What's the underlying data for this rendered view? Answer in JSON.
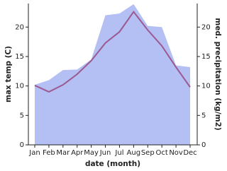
{
  "chart_data": {
    "type": "line",
    "xlabel": "date (month)",
    "ylabel": "max temp (C)",
    "y2label": "med. precipitation (kg/m2)",
    "categories": [
      "Jan",
      "Feb",
      "Mar",
      "Apr",
      "May",
      "Jun",
      "Jul",
      "Aug",
      "Sep",
      "Oct",
      "Nov",
      "Dec"
    ],
    "series": [
      {
        "name": "med. precipitation",
        "type": "area",
        "axis": "y2",
        "color": "#b4bff4",
        "values": [
          10.2,
          11,
          12.7,
          12.8,
          14.5,
          22,
          22.3,
          23.9,
          20.2,
          20,
          13.5,
          13.2
        ]
      },
      {
        "name": "max temp",
        "type": "line",
        "color": "#9b5a90",
        "values": [
          10.1,
          9,
          10.2,
          12,
          14.3,
          17.3,
          19.2,
          22.6,
          19.5,
          16.8,
          13.2,
          9.8
        ]
      }
    ],
    "ylim": [
      0,
      24
    ],
    "yticks": [
      0,
      5,
      10,
      15,
      20
    ],
    "y2lim": [
      0,
      24
    ],
    "y2ticks": [
      0,
      5,
      10,
      15,
      20
    ]
  }
}
